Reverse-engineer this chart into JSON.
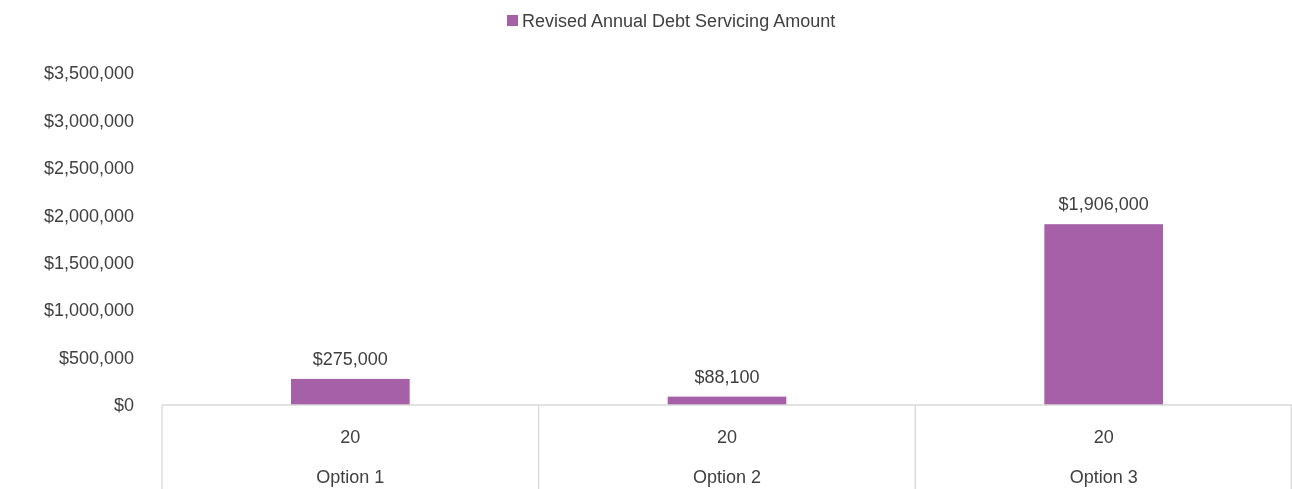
{
  "chart_data": {
    "type": "bar",
    "categories": [
      "20\nOption 1",
      "20\nOption 2",
      "20\nOption 3"
    ],
    "series": [
      {
        "name": "Revised Annual Debt Servicing Amount",
        "color": "#a560a8",
        "values": [
          275000,
          88100,
          1906000
        ]
      }
    ],
    "ylim": [
      0,
      3500000
    ],
    "yticks": [
      {
        "value": 0,
        "label": "$0"
      },
      {
        "value": 500000,
        "label": "$500,000"
      },
      {
        "value": 1000000,
        "label": "$1,000,000"
      },
      {
        "value": 1500000,
        "label": "$1,500,000"
      },
      {
        "value": 2000000,
        "label": "$2,000,000"
      },
      {
        "value": 2500000,
        "label": "$2,500,000"
      },
      {
        "value": 3000000,
        "label": "$3,000,000"
      },
      {
        "value": 3500000,
        "label": "$3,500,000"
      }
    ],
    "value_labels": [
      "$275,000",
      "$88,100",
      "$1,906,000"
    ],
    "legend": "top",
    "grid": false
  }
}
